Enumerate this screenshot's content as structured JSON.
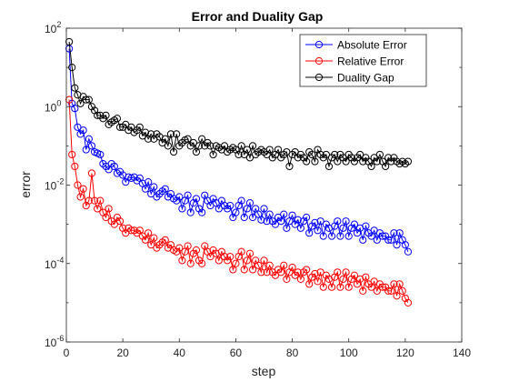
{
  "chart_data": {
    "type": "line",
    "title": "Error and Duality Gap",
    "xlabel": "step",
    "ylabel": "error",
    "xlim": [
      0,
      140
    ],
    "ylim": [
      1e-06,
      100
    ],
    "yscale": "log",
    "x_ticks": [
      "0",
      "20",
      "40",
      "60",
      "80",
      "100",
      "120",
      "140"
    ],
    "y_ticks": [
      {
        "base": "10",
        "exp": "-6"
      },
      {
        "base": "10",
        "exp": "-4"
      },
      {
        "base": "10",
        "exp": "-2"
      },
      {
        "base": "10",
        "exp": "0"
      },
      {
        "base": "10",
        "exp": "2"
      }
    ],
    "legend_position": "top-right",
    "grid": false,
    "series": [
      {
        "name": "Absolute Error",
        "color": "#0000ff",
        "marker": "circle",
        "x": [
          1,
          2,
          3,
          4,
          5,
          6,
          7,
          8,
          9,
          10,
          11,
          12,
          13,
          14,
          15,
          16,
          17,
          18,
          19,
          20,
          21,
          22,
          23,
          24,
          25,
          26,
          27,
          28,
          29,
          30,
          31,
          32,
          33,
          34,
          35,
          36,
          37,
          38,
          39,
          40,
          41,
          42,
          43,
          44,
          45,
          46,
          47,
          48,
          49,
          50,
          51,
          52,
          53,
          54,
          55,
          56,
          57,
          58,
          59,
          60,
          61,
          62,
          63,
          64,
          65,
          66,
          67,
          68,
          69,
          70,
          71,
          72,
          73,
          74,
          75,
          76,
          77,
          78,
          79,
          80,
          81,
          82,
          83,
          84,
          85,
          86,
          87,
          88,
          89,
          90,
          91,
          92,
          93,
          94,
          95,
          96,
          97,
          98,
          99,
          100,
          101,
          102,
          103,
          104,
          105,
          106,
          107,
          108,
          109,
          110,
          111,
          112,
          113,
          114,
          115,
          116,
          117,
          118,
          119,
          120,
          121
        ],
        "y": [
          30,
          1.2,
          0.9,
          0.3,
          0.2,
          0.25,
          0.08,
          0.15,
          0.1,
          0.07,
          0.065,
          0.06,
          0.035,
          0.03,
          0.025,
          0.035,
          0.03,
          0.02,
          0.022,
          0.018,
          0.012,
          0.016,
          0.015,
          0.016,
          0.013,
          0.015,
          0.011,
          0.008,
          0.012,
          0.006,
          0.009,
          0.005,
          0.006,
          0.007,
          0.008,
          0.005,
          0.006,
          0.0045,
          0.004,
          0.005,
          0.0025,
          0.004,
          0.0055,
          0.002,
          0.0035,
          0.0045,
          0.0025,
          0.002,
          0.0055,
          0.004,
          0.003,
          0.0045,
          0.0035,
          0.0025,
          0.004,
          0.003,
          0.0025,
          0.003,
          0.0015,
          0.002,
          0.003,
          0.004,
          0.0015,
          0.0025,
          0.0035,
          0.0015,
          0.0025,
          0.0018,
          0.0013,
          0.0025,
          0.0012,
          0.0018,
          0.0012,
          0.001,
          0.0015,
          0.0012,
          0.0018,
          0.0008,
          0.0012,
          0.0017,
          0.001,
          0.0013,
          0.0008,
          0.0012,
          0.0015,
          0.0006,
          0.0009,
          0.0011,
          0.0007,
          0.0012,
          0.0005,
          0.001,
          0.0008,
          0.0005,
          0.0009,
          0.0012,
          0.0005,
          0.0008,
          0.0012,
          0.0005,
          0.0008,
          0.001,
          0.0006,
          0.0008,
          0.0004,
          0.0009,
          0.0006,
          0.0005,
          0.0007,
          0.0004,
          0.0006,
          0.0005,
          0.0005,
          0.0004,
          0.0004,
          0.0006,
          0.0003,
          0.0006,
          0.0004,
          0.0003,
          0.0002
        ]
      },
      {
        "name": "Relative Error",
        "color": "#ff0000",
        "marker": "circle",
        "x": [
          1,
          2,
          3,
          4,
          5,
          6,
          7,
          8,
          9,
          10,
          11,
          12,
          13,
          14,
          15,
          16,
          17,
          18,
          19,
          20,
          21,
          22,
          23,
          24,
          25,
          26,
          27,
          28,
          29,
          30,
          31,
          32,
          33,
          34,
          35,
          36,
          37,
          38,
          39,
          40,
          41,
          42,
          43,
          44,
          45,
          46,
          47,
          48,
          49,
          50,
          51,
          52,
          53,
          54,
          55,
          56,
          57,
          58,
          59,
          60,
          61,
          62,
          63,
          64,
          65,
          66,
          67,
          68,
          69,
          70,
          71,
          72,
          73,
          74,
          75,
          76,
          77,
          78,
          79,
          80,
          81,
          82,
          83,
          84,
          85,
          86,
          87,
          88,
          89,
          90,
          91,
          92,
          93,
          94,
          95,
          96,
          97,
          98,
          99,
          100,
          101,
          102,
          103,
          104,
          105,
          106,
          107,
          108,
          109,
          110,
          111,
          112,
          113,
          114,
          115,
          116,
          117,
          118,
          119,
          120,
          121
        ],
        "y": [
          1.5,
          0.06,
          0.03,
          0.01,
          0.005,
          0.008,
          0.003,
          0.004,
          0.02,
          0.004,
          0.0025,
          0.004,
          0.002,
          0.0015,
          0.0025,
          0.0012,
          0.001,
          0.0015,
          0.0012,
          0.0008,
          0.0006,
          0.0008,
          0.0007,
          0.0007,
          0.0006,
          0.0007,
          0.0005,
          0.0004,
          0.0006,
          0.0003,
          0.00045,
          0.00025,
          0.0003,
          0.00035,
          0.0004,
          0.00025,
          0.0003,
          0.00022,
          0.0002,
          0.00025,
          0.00012,
          0.0002,
          0.00028,
          0.0001,
          0.00018,
          0.00022,
          0.00012,
          0.0001,
          0.00028,
          0.0002,
          0.00015,
          0.00022,
          0.00018,
          0.00012,
          0.0002,
          0.00015,
          0.00012,
          0.00015,
          7e-05,
          0.0001,
          0.00015,
          0.0002,
          7e-05,
          0.00012,
          0.00018,
          7e-05,
          0.00012,
          9e-05,
          6e-05,
          0.00012,
          6e-05,
          9e-05,
          6e-05,
          5e-05,
          7e-05,
          6e-05,
          9e-05,
          4e-05,
          6e-05,
          8e-05,
          5e-05,
          6e-05,
          4e-05,
          6e-05,
          7e-05,
          3e-05,
          4.5e-05,
          5.5e-05,
          3.5e-05,
          6e-05,
          2.5e-05,
          5e-05,
          4e-05,
          2.5e-05,
          4.5e-05,
          6e-05,
          2.5e-05,
          4e-05,
          6e-05,
          2.5e-05,
          4e-05,
          5e-05,
          3e-05,
          4e-05,
          2e-05,
          4.5e-05,
          3e-05,
          2.5e-05,
          3.5e-05,
          2e-05,
          3e-05,
          2.5e-05,
          2.5e-05,
          2e-05,
          2e-05,
          3e-05,
          1.5e-05,
          3e-05,
          2e-05,
          1.3e-05,
          1e-05
        ]
      },
      {
        "name": "Duality Gap",
        "color": "#000000",
        "marker": "circle",
        "x": [
          1,
          2,
          3,
          4,
          5,
          6,
          7,
          8,
          9,
          10,
          11,
          12,
          13,
          14,
          15,
          16,
          17,
          18,
          19,
          20,
          21,
          22,
          23,
          24,
          25,
          26,
          27,
          28,
          29,
          30,
          31,
          32,
          33,
          34,
          35,
          36,
          37,
          38,
          39,
          40,
          41,
          42,
          43,
          44,
          45,
          46,
          47,
          48,
          49,
          50,
          51,
          52,
          53,
          54,
          55,
          56,
          57,
          58,
          59,
          60,
          61,
          62,
          63,
          64,
          65,
          66,
          67,
          68,
          69,
          70,
          71,
          72,
          73,
          74,
          75,
          76,
          77,
          78,
          79,
          80,
          81,
          82,
          83,
          84,
          85,
          86,
          87,
          88,
          89,
          90,
          91,
          92,
          93,
          94,
          95,
          96,
          97,
          98,
          99,
          100,
          101,
          102,
          103,
          104,
          105,
          106,
          107,
          108,
          109,
          110,
          111,
          112,
          113,
          114,
          115,
          116,
          117,
          118,
          119,
          120,
          121
        ],
        "y": [
          45,
          10,
          3,
          2,
          1.2,
          1.8,
          1.5,
          1.5,
          1,
          0.8,
          0.6,
          0.6,
          0.5,
          0.6,
          0.35,
          0.4,
          0.45,
          0.5,
          0.3,
          0.3,
          0.35,
          0.25,
          0.3,
          0.22,
          0.25,
          0.3,
          0.18,
          0.22,
          0.15,
          0.2,
          0.15,
          0.2,
          0.17,
          0.12,
          0.15,
          0.1,
          0.2,
          0.07,
          0.2,
          0.1,
          0.12,
          0.14,
          0.15,
          0.1,
          0.12,
          0.07,
          0.1,
          0.15,
          0.1,
          0.12,
          0.1,
          0.06,
          0.1,
          0.09,
          0.08,
          0.1,
          0.07,
          0.08,
          0.09,
          0.08,
          0.06,
          0.1,
          0.06,
          0.08,
          0.05,
          0.1,
          0.06,
          0.07,
          0.08,
          0.07,
          0.06,
          0.08,
          0.05,
          0.06,
          0.08,
          0.05,
          0.06,
          0.07,
          0.03,
          0.06,
          0.07,
          0.05,
          0.06,
          0.05,
          0.04,
          0.07,
          0.06,
          0.04,
          0.08,
          0.06,
          0.05,
          0.06,
          0.03,
          0.05,
          0.06,
          0.04,
          0.06,
          0.05,
          0.04,
          0.06,
          0.05,
          0.04,
          0.05,
          0.06,
          0.04,
          0.05,
          0.04,
          0.03,
          0.05,
          0.04,
          0.06,
          0.04,
          0.03,
          0.05,
          0.04,
          0.05,
          0.04,
          0.035,
          0.04,
          0.035,
          0.04
        ]
      }
    ]
  }
}
